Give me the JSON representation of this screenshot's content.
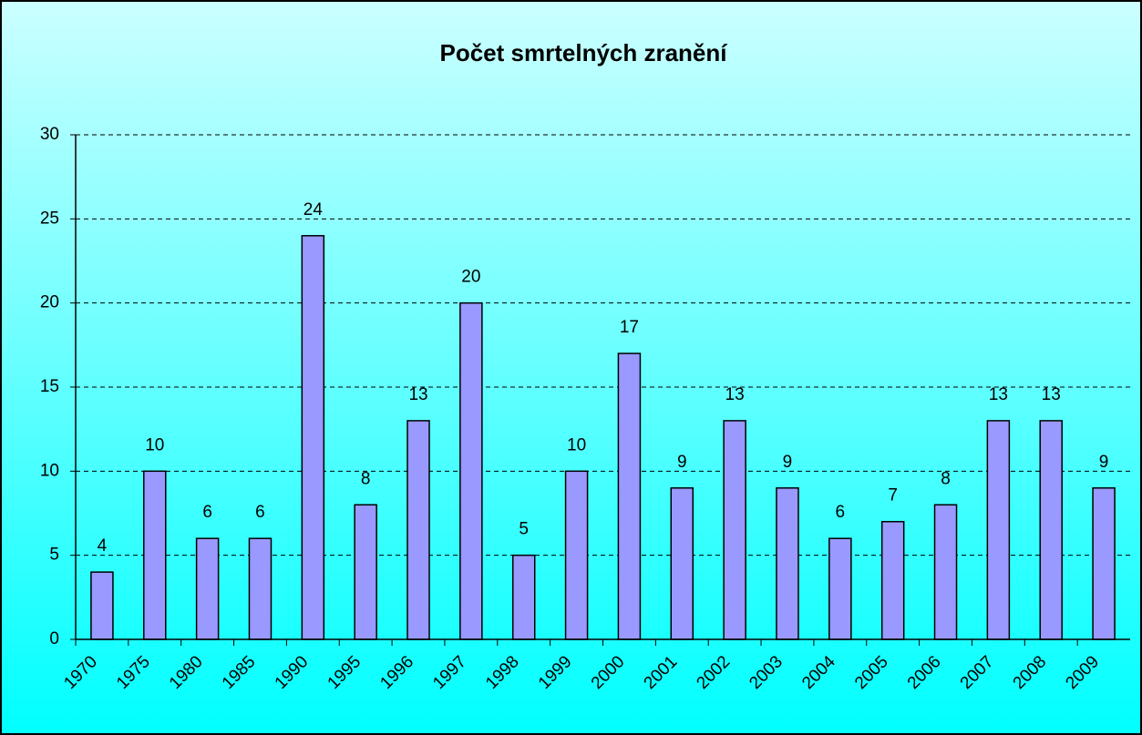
{
  "chart_data": {
    "type": "bar",
    "title": "Počet smrtelných zranění",
    "categories": [
      "1970",
      "1975",
      "1980",
      "1985",
      "1990",
      "1995",
      "1996",
      "1997",
      "1998",
      "1999",
      "2000",
      "2001",
      "2002",
      "2003",
      "2004",
      "2005",
      "2006",
      "2007",
      "2008",
      "2009"
    ],
    "values": [
      4,
      10,
      6,
      6,
      24,
      8,
      13,
      20,
      5,
      10,
      17,
      9,
      13,
      9,
      6,
      7,
      8,
      13,
      13,
      9
    ],
    "color": "#9999ff",
    "ylim": [
      0,
      30
    ],
    "yticks": [
      0,
      5,
      10,
      15,
      20,
      25,
      30
    ],
    "grid": true,
    "data_labels": true
  }
}
